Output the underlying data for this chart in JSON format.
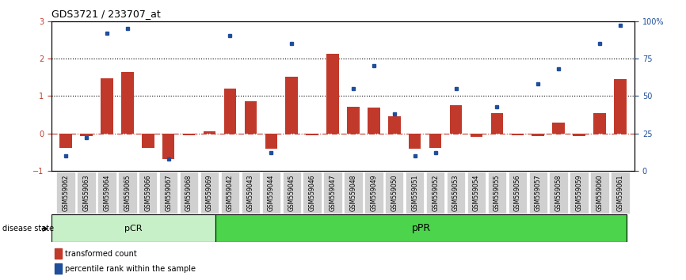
{
  "title": "GDS3721 / 233707_at",
  "samples": [
    "GSM559062",
    "GSM559063",
    "GSM559064",
    "GSM559065",
    "GSM559066",
    "GSM559067",
    "GSM559068",
    "GSM559069",
    "GSM559042",
    "GSM559043",
    "GSM559044",
    "GSM559045",
    "GSM559046",
    "GSM559047",
    "GSM559048",
    "GSM559049",
    "GSM559050",
    "GSM559051",
    "GSM559052",
    "GSM559053",
    "GSM559054",
    "GSM559055",
    "GSM559056",
    "GSM559057",
    "GSM559058",
    "GSM559059",
    "GSM559060",
    "GSM559061"
  ],
  "transformed_count": [
    -0.38,
    -0.08,
    1.48,
    1.63,
    -0.38,
    -0.68,
    -0.05,
    0.05,
    1.2,
    0.85,
    -0.42,
    1.52,
    -0.05,
    2.13,
    0.72,
    0.68,
    0.45,
    -0.42,
    -0.38,
    0.75,
    -0.1,
    0.55,
    -0.05,
    -0.08,
    0.28,
    -0.08,
    0.55,
    1.45
  ],
  "percentile_rank": [
    10,
    22,
    92,
    95,
    null,
    8,
    null,
    null,
    90,
    null,
    12,
    85,
    null,
    null,
    55,
    70,
    38,
    10,
    12,
    55,
    null,
    43,
    null,
    58,
    68,
    null,
    85,
    97
  ],
  "pCR_count": 8,
  "pPR_count": 20,
  "ylim_left": [
    -1,
    3
  ],
  "ylim_right": [
    0,
    100
  ],
  "yticks_left": [
    -1,
    0,
    1,
    2,
    3
  ],
  "yticks_right": [
    0,
    25,
    50,
    75,
    100
  ],
  "ytick_labels_right": [
    "0",
    "25",
    "50",
    "75",
    "100%"
  ],
  "bar_color": "#c0392b",
  "dot_color": "#1f4e9a",
  "zero_line_color": "#c0392b",
  "pCR_color": "#c8f0c8",
  "pPR_color": "#4cd44c",
  "right_axis_color": "#1f4e9a",
  "left_axis_color": "#c0392b",
  "legend_bar_label": "transformed count",
  "legend_dot_label": "percentile rank within the sample",
  "disease_state_label": "disease state",
  "pCR_label": "pCR",
  "pPR_label": "pPR",
  "tick_bg_color": "#d0d0d0"
}
